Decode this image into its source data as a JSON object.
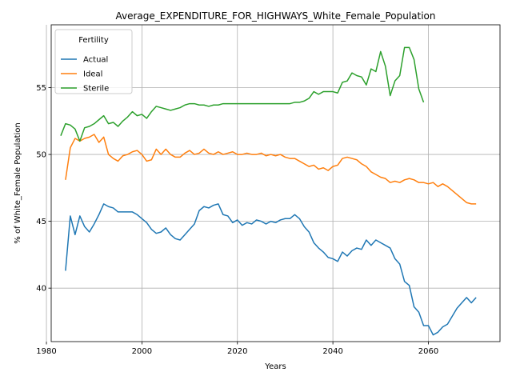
{
  "chart_data": {
    "type": "line",
    "title": "Average_EXPENDITURE_FOR_HIGHWAYS_White_Female_Population",
    "xlabel": "Years",
    "ylabel": "% of White_Female Population",
    "xlim": [
      1981,
      2075
    ],
    "ylim": [
      36,
      59.7
    ],
    "xticks": [
      1980,
      2000,
      2020,
      2040,
      2060
    ],
    "yticks": [
      40,
      45,
      50,
      55
    ],
    "grid": true,
    "legend": {
      "title": "Fertility",
      "placement": "upper-left"
    },
    "series": [
      {
        "name": "Actual",
        "color": "#1f77b4",
        "points": [
          [
            1984,
            41.3
          ],
          [
            1985,
            45.4
          ],
          [
            1986,
            44.0
          ],
          [
            1987,
            45.4
          ],
          [
            1988,
            44.6
          ],
          [
            1989,
            44.2
          ],
          [
            1990,
            44.8
          ],
          [
            1991,
            45.5
          ],
          [
            1992,
            46.3
          ],
          [
            1993,
            46.1
          ],
          [
            1994,
            46.0
          ],
          [
            1995,
            45.7
          ],
          [
            1996,
            45.7
          ],
          [
            1997,
            45.7
          ],
          [
            1998,
            45.7
          ],
          [
            1999,
            45.5
          ],
          [
            2000,
            45.2
          ],
          [
            2001,
            44.9
          ],
          [
            2002,
            44.4
          ],
          [
            2003,
            44.1
          ],
          [
            2004,
            44.2
          ],
          [
            2005,
            44.5
          ],
          [
            2006,
            44.0
          ],
          [
            2007,
            43.7
          ],
          [
            2008,
            43.6
          ],
          [
            2009,
            44.0
          ],
          [
            2010,
            44.4
          ],
          [
            2011,
            44.8
          ],
          [
            2012,
            45.8
          ],
          [
            2013,
            46.1
          ],
          [
            2014,
            46.0
          ],
          [
            2015,
            46.2
          ],
          [
            2016,
            46.3
          ],
          [
            2017,
            45.5
          ],
          [
            2018,
            45.4
          ],
          [
            2019,
            44.9
          ],
          [
            2020,
            45.1
          ],
          [
            2021,
            44.7
          ],
          [
            2022,
            44.9
          ],
          [
            2023,
            44.8
          ],
          [
            2024,
            45.1
          ],
          [
            2025,
            45.0
          ],
          [
            2026,
            44.8
          ],
          [
            2027,
            45.0
          ],
          [
            2028,
            44.9
          ],
          [
            2029,
            45.1
          ],
          [
            2030,
            45.2
          ],
          [
            2031,
            45.2
          ],
          [
            2032,
            45.5
          ],
          [
            2033,
            45.2
          ],
          [
            2034,
            44.6
          ],
          [
            2035,
            44.2
          ],
          [
            2036,
            43.4
          ],
          [
            2037,
            43.0
          ],
          [
            2038,
            42.7
          ],
          [
            2039,
            42.3
          ],
          [
            2040,
            42.2
          ],
          [
            2041,
            42.0
          ],
          [
            2042,
            42.7
          ],
          [
            2043,
            42.4
          ],
          [
            2044,
            42.8
          ],
          [
            2045,
            43.0
          ],
          [
            2046,
            42.9
          ],
          [
            2047,
            43.6
          ],
          [
            2048,
            43.2
          ],
          [
            2049,
            43.6
          ],
          [
            2050,
            43.4
          ],
          [
            2051,
            43.2
          ],
          [
            2052,
            43.0
          ],
          [
            2053,
            42.2
          ],
          [
            2054,
            41.8
          ],
          [
            2055,
            40.5
          ],
          [
            2056,
            40.2
          ],
          [
            2057,
            38.6
          ],
          [
            2058,
            38.2
          ],
          [
            2059,
            37.2
          ],
          [
            2060,
            37.2
          ],
          [
            2061,
            36.5
          ],
          [
            2062,
            36.7
          ],
          [
            2063,
            37.1
          ],
          [
            2064,
            37.3
          ],
          [
            2065,
            37.9
          ],
          [
            2066,
            38.5
          ],
          [
            2067,
            38.9
          ],
          [
            2068,
            39.3
          ],
          [
            2069,
            38.9
          ],
          [
            2070,
            39.3
          ]
        ]
      },
      {
        "name": "Ideal",
        "color": "#ff7f0e",
        "points": [
          [
            1984,
            48.1
          ],
          [
            1985,
            50.5
          ],
          [
            1986,
            51.2
          ],
          [
            1987,
            51.0
          ],
          [
            1988,
            51.2
          ],
          [
            1989,
            51.3
          ],
          [
            1990,
            51.5
          ],
          [
            1991,
            50.9
          ],
          [
            1992,
            51.3
          ],
          [
            1993,
            50.0
          ],
          [
            1994,
            49.7
          ],
          [
            1995,
            49.5
          ],
          [
            1996,
            49.9
          ],
          [
            1997,
            50.0
          ],
          [
            1998,
            50.2
          ],
          [
            1999,
            50.3
          ],
          [
            2000,
            50.0
          ],
          [
            2001,
            49.5
          ],
          [
            2002,
            49.6
          ],
          [
            2003,
            50.4
          ],
          [
            2004,
            50.0
          ],
          [
            2005,
            50.4
          ],
          [
            2006,
            50.0
          ],
          [
            2007,
            49.8
          ],
          [
            2008,
            49.8
          ],
          [
            2009,
            50.1
          ],
          [
            2010,
            50.3
          ],
          [
            2011,
            50.0
          ],
          [
            2012,
            50.1
          ],
          [
            2013,
            50.4
          ],
          [
            2014,
            50.1
          ],
          [
            2015,
            50.0
          ],
          [
            2016,
            50.2
          ],
          [
            2017,
            50.0
          ],
          [
            2018,
            50.1
          ],
          [
            2019,
            50.2
          ],
          [
            2020,
            50.0
          ],
          [
            2021,
            50.0
          ],
          [
            2022,
            50.1
          ],
          [
            2023,
            50.0
          ],
          [
            2024,
            50.0
          ],
          [
            2025,
            50.1
          ],
          [
            2026,
            49.9
          ],
          [
            2027,
            50.0
          ],
          [
            2028,
            49.9
          ],
          [
            2029,
            50.0
          ],
          [
            2030,
            49.8
          ],
          [
            2031,
            49.7
          ],
          [
            2032,
            49.7
          ],
          [
            2033,
            49.5
          ],
          [
            2034,
            49.3
          ],
          [
            2035,
            49.1
          ],
          [
            2036,
            49.2
          ],
          [
            2037,
            48.9
          ],
          [
            2038,
            49.0
          ],
          [
            2039,
            48.8
          ],
          [
            2040,
            49.1
          ],
          [
            2041,
            49.2
          ],
          [
            2042,
            49.7
          ],
          [
            2043,
            49.8
          ],
          [
            2044,
            49.7
          ],
          [
            2045,
            49.6
          ],
          [
            2046,
            49.3
          ],
          [
            2047,
            49.1
          ],
          [
            2048,
            48.7
          ],
          [
            2049,
            48.5
          ],
          [
            2050,
            48.3
          ],
          [
            2051,
            48.2
          ],
          [
            2052,
            47.9
          ],
          [
            2053,
            48.0
          ],
          [
            2054,
            47.9
          ],
          [
            2055,
            48.1
          ],
          [
            2056,
            48.2
          ],
          [
            2057,
            48.1
          ],
          [
            2058,
            47.9
          ],
          [
            2059,
            47.9
          ],
          [
            2060,
            47.8
          ],
          [
            2061,
            47.9
          ],
          [
            2062,
            47.6
          ],
          [
            2063,
            47.8
          ],
          [
            2064,
            47.6
          ],
          [
            2065,
            47.3
          ],
          [
            2066,
            47.0
          ],
          [
            2067,
            46.7
          ],
          [
            2068,
            46.4
          ],
          [
            2069,
            46.3
          ],
          [
            2070,
            46.3
          ]
        ]
      },
      {
        "name": "Sterile",
        "color": "#2ca02c",
        "points": [
          [
            1983,
            51.4
          ],
          [
            1984,
            52.3
          ],
          [
            1985,
            52.2
          ],
          [
            1986,
            51.9
          ],
          [
            1987,
            51.0
          ],
          [
            1988,
            52.0
          ],
          [
            1989,
            52.1
          ],
          [
            1990,
            52.3
          ],
          [
            1991,
            52.6
          ],
          [
            1992,
            52.9
          ],
          [
            1993,
            52.3
          ],
          [
            1994,
            52.4
          ],
          [
            1995,
            52.1
          ],
          [
            1996,
            52.5
          ],
          [
            1997,
            52.8
          ],
          [
            1998,
            53.2
          ],
          [
            1999,
            52.9
          ],
          [
            2000,
            53.0
          ],
          [
            2001,
            52.7
          ],
          [
            2002,
            53.2
          ],
          [
            2003,
            53.6
          ],
          [
            2004,
            53.5
          ],
          [
            2005,
            53.4
          ],
          [
            2006,
            53.3
          ],
          [
            2007,
            53.4
          ],
          [
            2008,
            53.5
          ],
          [
            2009,
            53.7
          ],
          [
            2010,
            53.8
          ],
          [
            2011,
            53.8
          ],
          [
            2012,
            53.7
          ],
          [
            2013,
            53.7
          ],
          [
            2014,
            53.6
          ],
          [
            2015,
            53.7
          ],
          [
            2016,
            53.7
          ],
          [
            2017,
            53.8
          ],
          [
            2018,
            53.8
          ],
          [
            2019,
            53.8
          ],
          [
            2020,
            53.8
          ],
          [
            2021,
            53.8
          ],
          [
            2022,
            53.8
          ],
          [
            2023,
            53.8
          ],
          [
            2024,
            53.8
          ],
          [
            2025,
            53.8
          ],
          [
            2026,
            53.8
          ],
          [
            2027,
            53.8
          ],
          [
            2028,
            53.8
          ],
          [
            2029,
            53.8
          ],
          [
            2030,
            53.8
          ],
          [
            2031,
            53.8
          ],
          [
            2032,
            53.9
          ],
          [
            2033,
            53.9
          ],
          [
            2034,
            54.0
          ],
          [
            2035,
            54.2
          ],
          [
            2036,
            54.7
          ],
          [
            2037,
            54.5
          ],
          [
            2038,
            54.7
          ],
          [
            2039,
            54.7
          ],
          [
            2040,
            54.7
          ],
          [
            2041,
            54.6
          ],
          [
            2042,
            55.4
          ],
          [
            2043,
            55.5
          ],
          [
            2044,
            56.1
          ],
          [
            2045,
            55.9
          ],
          [
            2046,
            55.8
          ],
          [
            2047,
            55.2
          ],
          [
            2048,
            56.4
          ],
          [
            2049,
            56.2
          ],
          [
            2050,
            57.7
          ],
          [
            2051,
            56.6
          ],
          [
            2052,
            54.4
          ],
          [
            2053,
            55.5
          ],
          [
            2054,
            55.9
          ],
          [
            2055,
            58.0
          ],
          [
            2056,
            58.0
          ],
          [
            2057,
            57.1
          ],
          [
            2058,
            54.9
          ],
          [
            2059,
            53.9
          ]
        ]
      }
    ]
  }
}
